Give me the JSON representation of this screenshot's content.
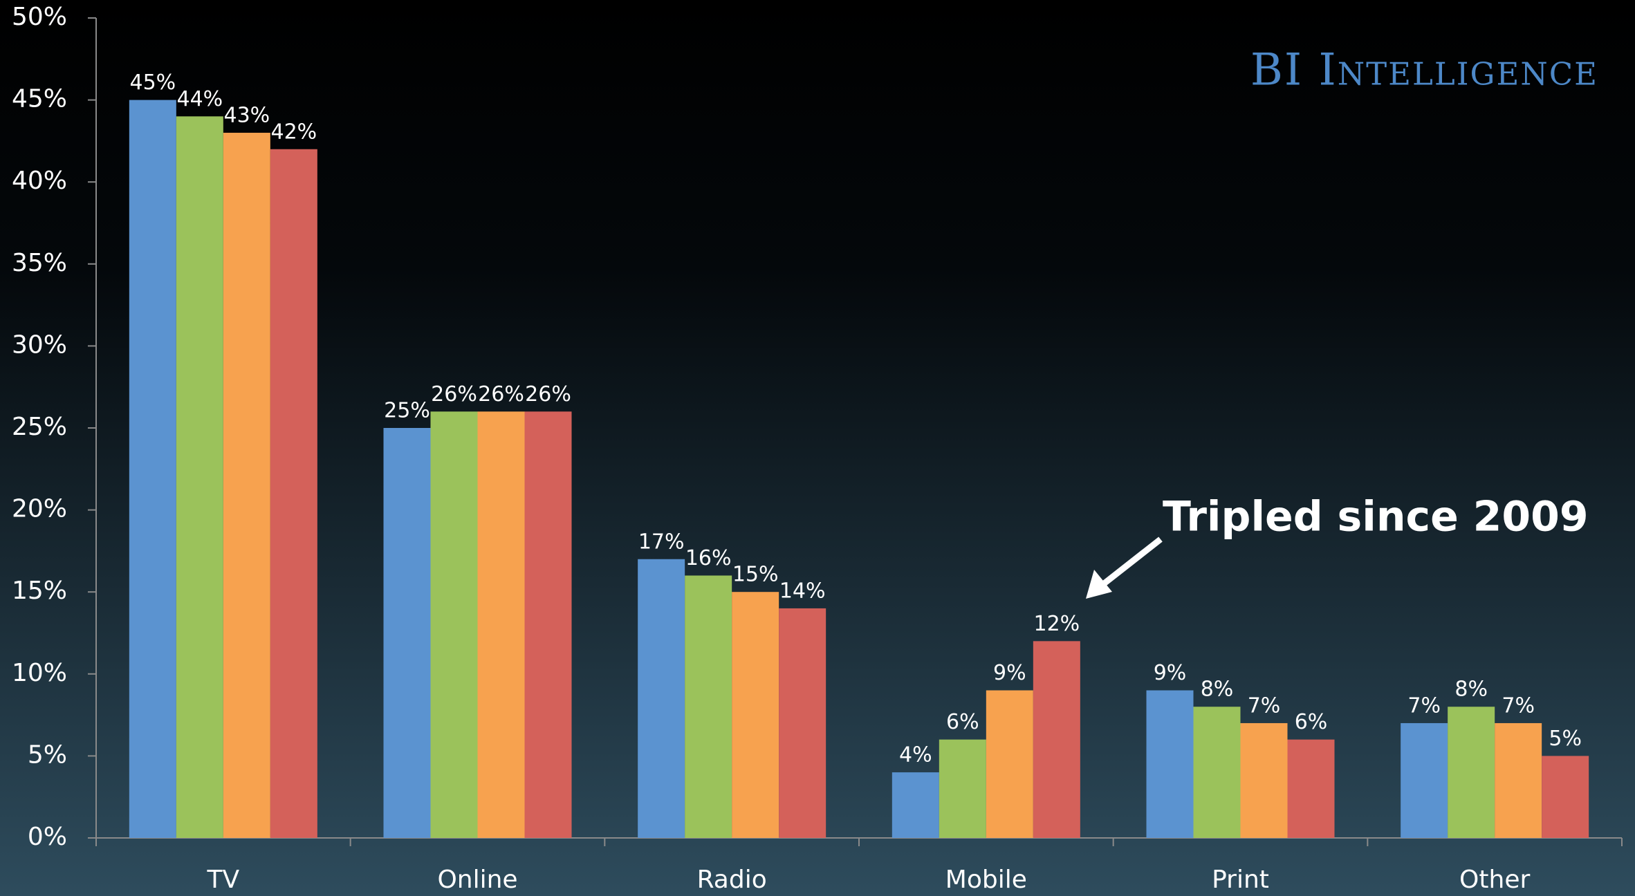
{
  "chart_data": {
    "type": "bar",
    "brand": "BI Intelligence",
    "annotation": "Tripled since 2009",
    "categories": [
      "TV",
      "Online",
      "Radio",
      "Mobile",
      "Print",
      "Other"
    ],
    "series": [
      {
        "color": "#5b93d0",
        "values": [
          45,
          25,
          17,
          4,
          9,
          7
        ],
        "value_labels": [
          "45%",
          "25%",
          "17%",
          "4%",
          "9%",
          "7%"
        ]
      },
      {
        "color": "#9bc25b",
        "values": [
          44,
          26,
          16,
          6,
          8,
          8
        ],
        "value_labels": [
          "44%",
          "26%",
          "16%",
          "6%",
          "8%",
          "8%"
        ]
      },
      {
        "color": "#f7a24f",
        "values": [
          43,
          26,
          15,
          9,
          7,
          7
        ],
        "value_labels": [
          "43%",
          "26%",
          "15%",
          "9%",
          "7%",
          "7%"
        ]
      },
      {
        "color": "#d4615a",
        "values": [
          42,
          26,
          14,
          12,
          6,
          5
        ],
        "value_labels": [
          "42%",
          "26%",
          "14%",
          "12%",
          "6%",
          "5%"
        ]
      }
    ],
    "ylim": [
      0,
      50
    ],
    "yticks": [
      {
        "value": 0,
        "label": "0%"
      },
      {
        "value": 5,
        "label": "5%"
      },
      {
        "value": 10,
        "label": "10%"
      },
      {
        "value": 15,
        "label": "15%"
      },
      {
        "value": 20,
        "label": "20%"
      },
      {
        "value": 25,
        "label": "25%"
      },
      {
        "value": 30,
        "label": "30%"
      },
      {
        "value": 35,
        "label": "35%"
      },
      {
        "value": 40,
        "label": "40%"
      },
      {
        "value": 45,
        "label": "45%"
      },
      {
        "value": 50,
        "label": "50%"
      }
    ],
    "grid": false
  }
}
